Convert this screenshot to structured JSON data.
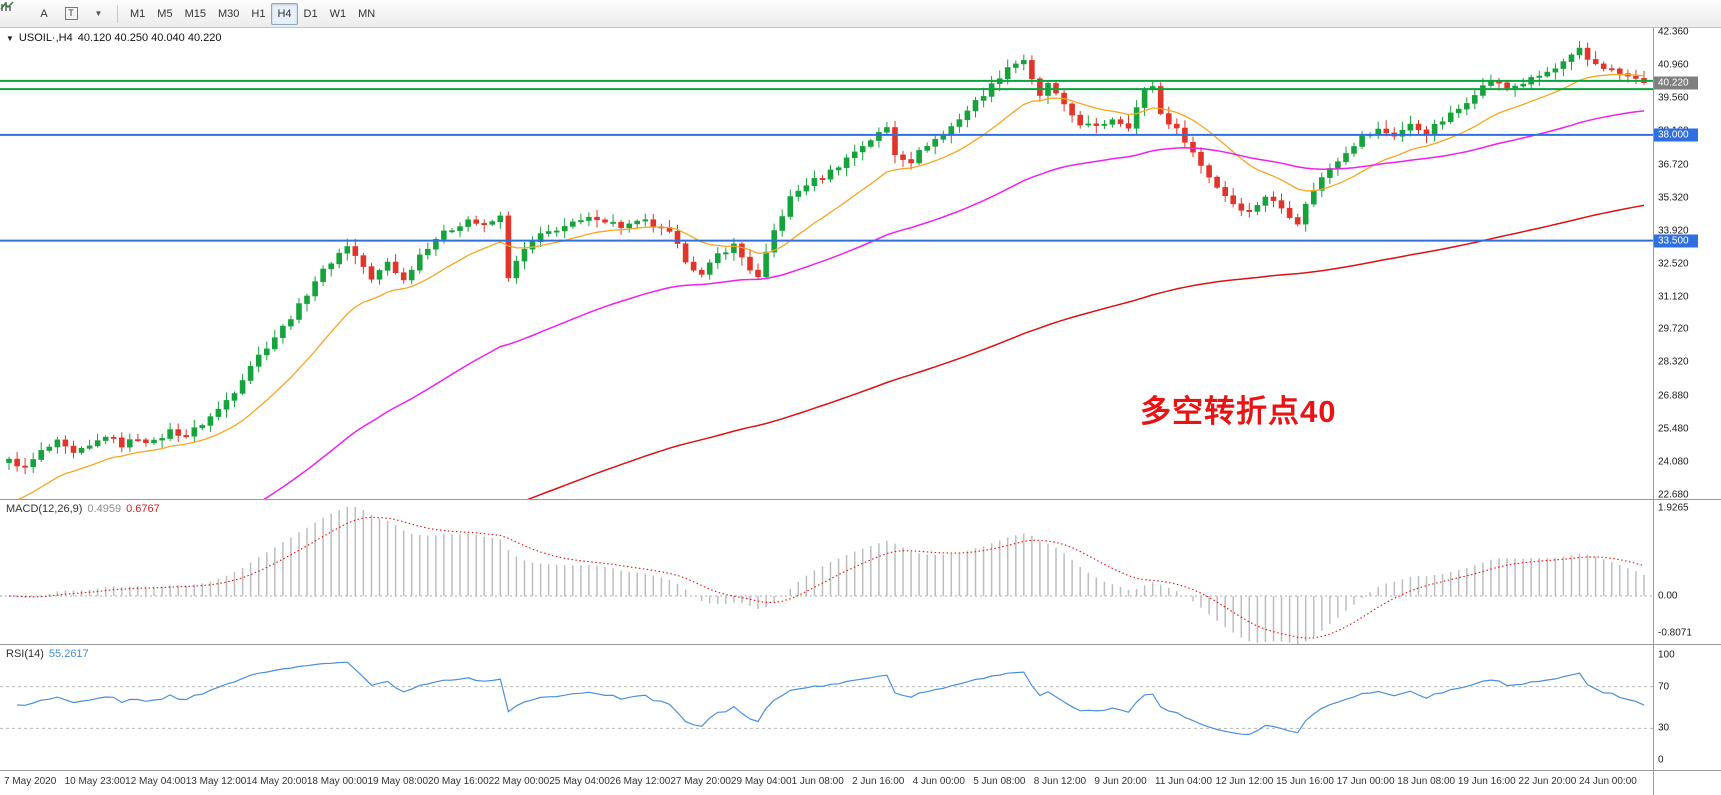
{
  "toolbar": {
    "icons": [
      "charts-icon",
      "cursor-a-icon",
      "text-tool-icon",
      "indicators-icon"
    ],
    "icon_labels": {
      "cursor": "A",
      "text": "T"
    },
    "timeframes": [
      "M1",
      "M5",
      "M15",
      "M30",
      "H1",
      "H4",
      "D1",
      "W1",
      "MN"
    ],
    "selected_timeframe": "H4"
  },
  "symbol_header": {
    "dropdown_icon": "symbol-dropdown",
    "title": "USOIL·,H4",
    "ohlc": "40.120 40.250 40.040 40.220"
  },
  "annotation": {
    "text": "多空转折点40",
    "color": "#e81414"
  },
  "chart_data": {
    "type": "candlestick+indicators",
    "symbol": "USOIL",
    "timeframe": "H4",
    "ohlc_display": {
      "open": "40.120",
      "high": "40.250",
      "low": "40.040",
      "close": "40.220"
    },
    "price_panel": {
      "axis_labels": [
        "42.360",
        "40.960",
        "39.560",
        "38.160",
        "36.720",
        "35.320",
        "33.920",
        "32.520",
        "31.120",
        "29.720",
        "28.320",
        "26.880",
        "25.480",
        "24.080",
        "22.680"
      ],
      "scale": {
        "max": 42.55,
        "min": 22.5
      },
      "bars": 204,
      "up_color": "#17a33c",
      "down_color": "#e2352a",
      "close_anchors": [
        [
          0,
          24.2
        ],
        [
          2,
          23.8
        ],
        [
          4,
          24.5
        ],
        [
          6,
          24.9
        ],
        [
          8,
          24.4
        ],
        [
          10,
          24.7
        ],
        [
          12,
          25.2
        ],
        [
          14,
          24.8
        ],
        [
          16,
          25.1
        ],
        [
          18,
          24.9
        ],
        [
          20,
          25.4
        ],
        [
          22,
          25.2
        ],
        [
          24,
          25.7
        ],
        [
          26,
          26.3
        ],
        [
          28,
          27.1
        ],
        [
          30,
          28.2
        ],
        [
          32,
          29.0
        ],
        [
          34,
          29.8
        ],
        [
          36,
          30.7
        ],
        [
          38,
          31.8
        ],
        [
          40,
          32.6
        ],
        [
          42,
          33.3
        ],
        [
          44,
          32.4
        ],
        [
          45,
          31.8
        ],
        [
          47,
          32.6
        ],
        [
          49,
          31.8
        ],
        [
          51,
          32.9
        ],
        [
          53,
          33.6
        ],
        [
          55,
          34.0
        ],
        [
          57,
          34.4
        ],
        [
          59,
          34.1
        ],
        [
          61,
          34.5
        ],
        [
          62,
          32.0
        ],
        [
          64,
          33.1
        ],
        [
          66,
          33.7
        ],
        [
          68,
          34.0
        ],
        [
          70,
          34.2
        ],
        [
          73,
          34.5
        ],
        [
          76,
          34.1
        ],
        [
          79,
          34.3
        ],
        [
          82,
          33.8
        ],
        [
          84,
          32.7
        ],
        [
          86,
          32.0
        ],
        [
          88,
          32.9
        ],
        [
          90,
          33.3
        ],
        [
          92,
          32.3
        ],
        [
          93,
          31.9
        ],
        [
          95,
          33.9
        ],
        [
          97,
          35.3
        ],
        [
          99,
          35.9
        ],
        [
          101,
          36.2
        ],
        [
          103,
          36.7
        ],
        [
          105,
          37.3
        ],
        [
          107,
          37.8
        ],
        [
          109,
          38.3
        ],
        [
          110,
          37.2
        ],
        [
          112,
          36.9
        ],
        [
          114,
          37.6
        ],
        [
          116,
          38.0
        ],
        [
          118,
          38.7
        ],
        [
          120,
          39.4
        ],
        [
          122,
          40.1
        ],
        [
          124,
          40.9
        ],
        [
          126,
          41.2
        ],
        [
          127,
          40.3
        ],
        [
          128,
          39.6
        ],
        [
          129,
          40.2
        ],
        [
          131,
          39.2
        ],
        [
          133,
          38.5
        ],
        [
          135,
          38.3
        ],
        [
          137,
          38.7
        ],
        [
          139,
          38.4
        ],
        [
          141,
          39.9
        ],
        [
          142,
          40.1
        ],
        [
          143,
          38.9
        ],
        [
          145,
          38.2
        ],
        [
          146,
          37.8
        ],
        [
          148,
          36.7
        ],
        [
          150,
          35.8
        ],
        [
          152,
          35.1
        ],
        [
          154,
          34.7
        ],
        [
          156,
          35.4
        ],
        [
          158,
          34.9
        ],
        [
          160,
          34.3
        ],
        [
          162,
          35.7
        ],
        [
          164,
          36.6
        ],
        [
          166,
          37.3
        ],
        [
          168,
          37.9
        ],
        [
          170,
          38.2
        ],
        [
          172,
          38.0
        ],
        [
          174,
          38.4
        ],
        [
          176,
          38.1
        ],
        [
          178,
          38.6
        ],
        [
          180,
          39.1
        ],
        [
          182,
          39.8
        ],
        [
          184,
          40.3
        ],
        [
          186,
          40.0
        ],
        [
          188,
          40.2
        ],
        [
          190,
          40.5
        ],
        [
          192,
          40.8
        ],
        [
          194,
          41.3
        ],
        [
          195,
          41.6
        ],
        [
          196,
          41.2
        ],
        [
          198,
          40.9
        ],
        [
          200,
          40.6
        ],
        [
          202,
          40.35
        ],
        [
          203,
          40.22
        ]
      ],
      "moving_averages": [
        {
          "name": "ma-fast",
          "period": 16,
          "seed": 22,
          "color": "#f5a623",
          "width": 1.3
        },
        {
          "name": "ma-mid",
          "period": 60,
          "seed": 16,
          "color": "#ee22ee",
          "width": 1.5
        },
        {
          "name": "ma-slow",
          "period": 170,
          "seed": 14,
          "color": "#dd1111",
          "width": 1.5
        }
      ],
      "hlines": [
        {
          "price": 40.3,
          "color": "#0aa43e",
          "width": 2
        },
        {
          "price": 39.95,
          "color": "#0aa43e",
          "width": 2
        },
        {
          "price": 38.0,
          "color": "#2f6fe0",
          "width": 2
        },
        {
          "price": 33.5,
          "color": "#2f6fe0",
          "width": 2
        }
      ],
      "price_tags": [
        {
          "text": "40.220",
          "price": 40.22,
          "bg": "#7f7f7f"
        },
        {
          "text": "38.000",
          "price": 38.0,
          "bg": "#2f6fe0"
        },
        {
          "text": "33.500",
          "price": 33.5,
          "bg": "#2f6fe0"
        }
      ]
    },
    "macd_panel": {
      "label": "MACD(12,26,9)",
      "values": [
        "0.4959",
        "0.6767"
      ],
      "params": {
        "fast": 12,
        "slow": 26,
        "signal": 9
      },
      "axis_labels": [
        "1.9265",
        "0.00",
        "-0.8071"
      ],
      "scale": {
        "max": 2.1,
        "min": -1.05
      },
      "histogram_color": "#bdbdbd",
      "signal_color": "#e01010"
    },
    "rsi_panel": {
      "label": "RSI(14)",
      "value": "55.2617",
      "period": 14,
      "axis_labels": [
        "100",
        "70",
        "30",
        "0"
      ],
      "levels": [
        70,
        30
      ],
      "scale": {
        "max": 110,
        "min": -10
      },
      "line_color": "#4a90d9"
    },
    "time_axis": [
      "7 May 2020",
      "10 May 23:00",
      "12 May 04:00",
      "13 May 12:00",
      "14 May 20:00",
      "18 May 00:00",
      "19 May 08:00",
      "20 May 16:00",
      "22 May 00:00",
      "25 May 04:00",
      "26 May 12:00",
      "27 May 20:00",
      "29 May 04:00",
      "1 Jun 08:00",
      "2 Jun 16:00",
      "4 Jun 00:00",
      "5 Jun 08:00",
      "8 Jun 12:00",
      "9 Jun 20:00",
      "11 Jun 04:00",
      "12 Jun 12:00",
      "15 Jun 16:00",
      "17 Jun 00:00",
      "18 Jun 08:00",
      "19 Jun 16:00",
      "22 Jun 20:00",
      "24 Jun 00:00"
    ]
  }
}
